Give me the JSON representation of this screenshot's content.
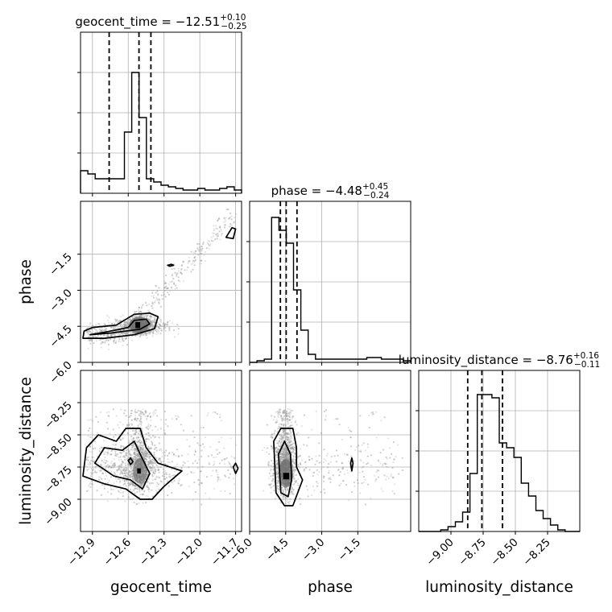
{
  "chart_data": {
    "type": "corner",
    "parameters": [
      "geocent_time",
      "phase",
      "luminosity_distance"
    ],
    "axis_labels": [
      "geocent_time",
      "phase",
      "luminosity_distance"
    ],
    "titles": {
      "geocent_time": {
        "prefix": "geocent_time = ",
        "median": "−12.51",
        "plus": "+0.10",
        "minus": "−0.25"
      },
      "phase": {
        "prefix": "phase = ",
        "median": "−4.48",
        "plus": "+0.45",
        "minus": "−0.24"
      },
      "luminosity_distance": {
        "prefix": "luminosity_distance = ",
        "median": "−8.76",
        "plus": "+0.16",
        "minus": "−0.11"
      }
    },
    "ranges": {
      "geocent_time": [
        -13.0,
        -11.65
      ],
      "phase": [
        -6.0,
        0.7
      ],
      "luminosity_distance": [
        -9.25,
        -8.0
      ]
    },
    "ticks": {
      "geocent_time": {
        "values": [
          -12.9,
          -12.6,
          -12.3,
          -12.0,
          -11.7
        ],
        "labels": [
          "−12.9",
          "−12.6",
          "−12.3",
          "−12.0",
          "−11.7"
        ]
      },
      "phase": {
        "values": [
          -6.0,
          -4.5,
          -3.0,
          -1.5
        ],
        "labels": [
          "−6.0",
          "−4.5",
          "−3.0",
          "−1.5"
        ]
      },
      "luminosity_distance": {
        "values": [
          -9.0,
          -8.75,
          -8.5,
          -8.25
        ],
        "labels": [
          "−9.00",
          "−8.75",
          "−8.50",
          "−8.25"
        ]
      }
    },
    "quantiles": {
      "geocent_time": [
        -12.76,
        -12.51,
        -12.41
      ],
      "phase": [
        -4.72,
        -4.48,
        -4.03
      ],
      "luminosity_distance": [
        -8.87,
        -8.76,
        -8.6
      ]
    },
    "histograms": {
      "geocent_time": [
        0.14,
        0.12,
        0.09,
        0.09,
        0.09,
        0.09,
        0.38,
        0.75,
        0.47,
        0.09,
        0.07,
        0.05,
        0.04,
        0.03,
        0.02,
        0.02,
        0.03,
        0.02,
        0.02,
        0.03,
        0.04,
        0.02
      ],
      "phase": [
        0.0,
        0.01,
        0.02,
        0.9,
        0.82,
        0.74,
        0.45,
        0.2,
        0.05,
        0.02,
        0.02,
        0.02,
        0.02,
        0.02,
        0.02,
        0.02,
        0.03,
        0.03,
        0.02,
        0.02,
        0.02,
        0.01
      ],
      "luminosity_distance": [
        0.0,
        0.0,
        0.0,
        0.01,
        0.03,
        0.06,
        0.12,
        0.36,
        0.85,
        0.85,
        0.83,
        0.55,
        0.52,
        0.46,
        0.3,
        0.22,
        0.13,
        0.08,
        0.04,
        0.01,
        0.0,
        0.0
      ]
    },
    "grid": true,
    "levels": 2,
    "color": "#000000",
    "scatter_color": "#999999"
  }
}
